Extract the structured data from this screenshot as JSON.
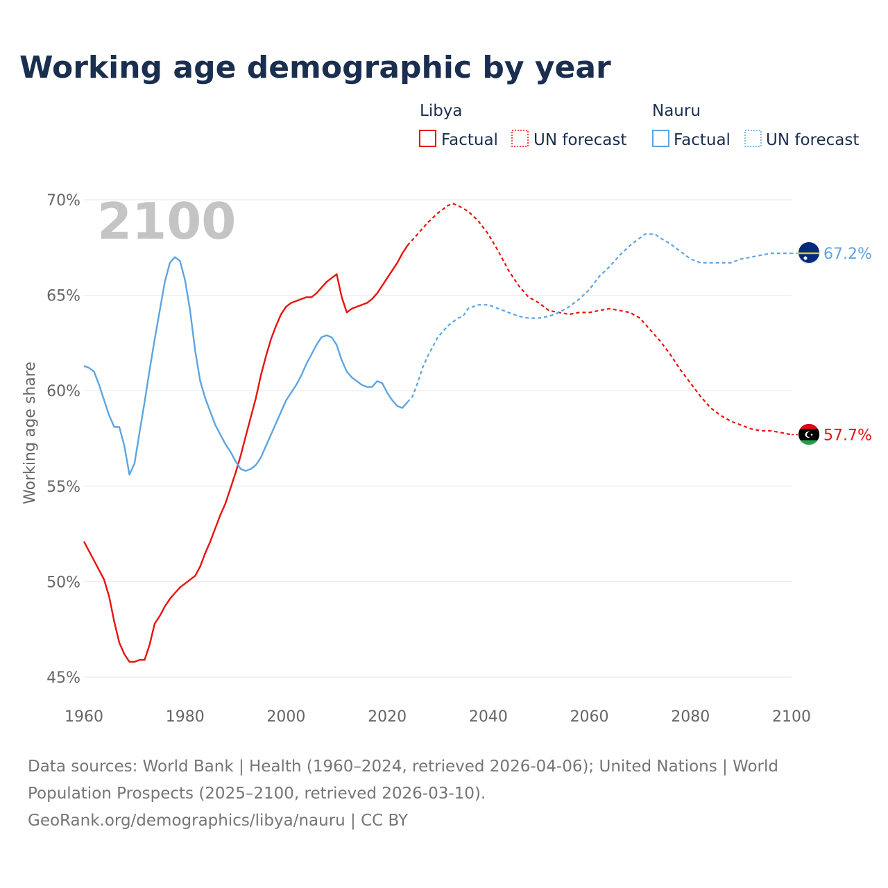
{
  "chart_data": {
    "type": "line",
    "title": "Working age demographic by year",
    "ylabel": "Working age share",
    "xlabel": "",
    "xlim": [
      1960,
      2100
    ],
    "ylim": [
      45,
      70
    ],
    "x_ticks": [
      1960,
      1980,
      2000,
      2020,
      2040,
      2060,
      2080,
      2100
    ],
    "x_tick_labels": [
      "1960",
      "1980",
      "2000",
      "2020",
      "2040",
      "2060",
      "2080",
      "2100"
    ],
    "y_ticks": [
      45,
      50,
      55,
      60,
      65,
      70
    ],
    "y_tick_labels": [
      "45%",
      "50%",
      "55%",
      "60%",
      "65%",
      "70%"
    ],
    "grid": true,
    "year_watermark": "2100",
    "legend": {
      "placement": "top-right",
      "groups": [
        {
          "country": "Libya",
          "factual_label": "Factual",
          "forecast_label": "UN forecast",
          "color": "#e8120c"
        },
        {
          "country": "Nauru",
          "factual_label": "Factual",
          "forecast_label": "UN forecast",
          "color": "#5da4e1"
        }
      ]
    },
    "series": [
      {
        "name": "Libya",
        "color": "#e8120c",
        "end_label": "57.7%",
        "flag": "libya",
        "factual": {
          "x": [
            1960,
            1962,
            1964,
            1965,
            1966,
            1967,
            1968,
            1969,
            1970,
            1971,
            1972,
            1973,
            1974,
            1975,
            1976,
            1977,
            1978,
            1979,
            1980,
            1981,
            1982,
            1983,
            1984,
            1985,
            1986,
            1987,
            1988,
            1989,
            1990,
            1991,
            1992,
            1993,
            1994,
            1995,
            1996,
            1997,
            1998,
            1999,
            2000,
            2001,
            2002,
            2003,
            2004,
            2005,
            2006,
            2007,
            2008,
            2009,
            2010,
            2011,
            2012,
            2013,
            2014,
            2015,
            2016,
            2017,
            2018,
            2019,
            2020,
            2021,
            2022,
            2023,
            2024
          ],
          "y": [
            52.1,
            51.1,
            50.1,
            49.2,
            47.9,
            46.8,
            46.2,
            45.8,
            45.8,
            45.9,
            45.9,
            46.7,
            47.8,
            48.2,
            48.7,
            49.1,
            49.4,
            49.7,
            49.9,
            50.1,
            50.3,
            50.8,
            51.5,
            52.1,
            52.8,
            53.5,
            54.1,
            54.9,
            55.7,
            56.6,
            57.6,
            58.6,
            59.6,
            60.8,
            61.8,
            62.7,
            63.4,
            64.0,
            64.4,
            64.6,
            64.7,
            64.8,
            64.9,
            64.9,
            65.1,
            65.4,
            65.7,
            65.9,
            66.1,
            64.9,
            64.1,
            64.3,
            64.4,
            64.5,
            64.6,
            64.8,
            65.1,
            65.5,
            65.9,
            66.3,
            66.7,
            67.2,
            67.6
          ]
        },
        "forecast": {
          "x": [
            2024,
            2026,
            2028,
            2030,
            2032,
            2033,
            2034,
            2036,
            2038,
            2040,
            2042,
            2044,
            2046,
            2048,
            2050,
            2052,
            2054,
            2056,
            2058,
            2060,
            2062,
            2064,
            2066,
            2068,
            2070,
            2072,
            2074,
            2076,
            2078,
            2080,
            2082,
            2084,
            2086,
            2088,
            2090,
            2092,
            2094,
            2096,
            2098,
            2100
          ],
          "y": [
            67.6,
            68.2,
            68.8,
            69.3,
            69.7,
            69.8,
            69.7,
            69.4,
            68.9,
            68.2,
            67.3,
            66.3,
            65.5,
            64.9,
            64.6,
            64.2,
            64.1,
            64.0,
            64.1,
            64.1,
            64.2,
            64.3,
            64.2,
            64.1,
            63.8,
            63.2,
            62.6,
            61.9,
            61.1,
            60.4,
            59.7,
            59.1,
            58.7,
            58.4,
            58.2,
            58.0,
            57.9,
            57.9,
            57.8,
            57.7
          ]
        }
      },
      {
        "name": "Nauru",
        "color": "#5da4e1",
        "end_label": "67.2%",
        "flag": "nauru",
        "factual": {
          "x": [
            1960,
            1961,
            1962,
            1963,
            1964,
            1965,
            1966,
            1967,
            1968,
            1969,
            1970,
            1971,
            1972,
            1973,
            1974,
            1975,
            1976,
            1977,
            1978,
            1979,
            1980,
            1981,
            1982,
            1983,
            1984,
            1985,
            1986,
            1987,
            1988,
            1989,
            1990,
            1991,
            1992,
            1993,
            1994,
            1995,
            1996,
            1997,
            1998,
            1999,
            2000,
            2001,
            2002,
            2003,
            2004,
            2005,
            2006,
            2007,
            2008,
            2009,
            2010,
            2011,
            2012,
            2013,
            2014,
            2015,
            2016,
            2017,
            2018,
            2019,
            2020,
            2021,
            2022,
            2023,
            2024
          ],
          "y": [
            61.3,
            61.2,
            61.0,
            60.3,
            59.5,
            58.7,
            58.1,
            58.1,
            57.1,
            55.6,
            56.2,
            57.8,
            59.4,
            61.1,
            62.7,
            64.2,
            65.7,
            66.7,
            67.0,
            66.8,
            65.8,
            64.2,
            62.1,
            60.5,
            59.6,
            58.9,
            58.2,
            57.7,
            57.2,
            56.8,
            56.3,
            55.9,
            55.8,
            55.9,
            56.1,
            56.5,
            57.1,
            57.7,
            58.3,
            58.9,
            59.5,
            59.9,
            60.3,
            60.8,
            61.4,
            61.9,
            62.4,
            62.8,
            62.9,
            62.8,
            62.4,
            61.6,
            61.0,
            60.7,
            60.5,
            60.3,
            60.2,
            60.2,
            60.5,
            60.4,
            59.9,
            59.5,
            59.2,
            59.1,
            59.4
          ]
        },
        "forecast": {
          "x": [
            2024,
            2025,
            2026,
            2027,
            2028,
            2029,
            2030,
            2031,
            2032,
            2034,
            2035,
            2036,
            2037,
            2038,
            2040,
            2042,
            2044,
            2046,
            2048,
            2050,
            2052,
            2054,
            2056,
            2058,
            2060,
            2062,
            2064,
            2066,
            2068,
            2070,
            2071,
            2072,
            2073,
            2074,
            2076,
            2078,
            2080,
            2082,
            2084,
            2086,
            2088,
            2090,
            2092,
            2094,
            2096,
            2098,
            2100
          ],
          "y": [
            59.4,
            59.7,
            60.4,
            61.2,
            61.8,
            62.3,
            62.8,
            63.1,
            63.4,
            63.8,
            63.9,
            64.3,
            64.4,
            64.5,
            64.5,
            64.3,
            64.1,
            63.9,
            63.8,
            63.8,
            63.9,
            64.1,
            64.4,
            64.8,
            65.3,
            66.0,
            66.5,
            67.1,
            67.6,
            68.0,
            68.2,
            68.2,
            68.2,
            68.0,
            67.7,
            67.3,
            66.9,
            66.7,
            66.7,
            66.7,
            66.7,
            66.9,
            67.0,
            67.1,
            67.2,
            67.2,
            67.2
          ]
        }
      }
    ]
  },
  "footer": {
    "line1": "Data sources: World Bank | Health (1960–2024, retrieved 2026-04-06); United Nations | World",
    "line2": "Population Prospects (2025–2100, retrieved 2026-03-10).",
    "line3": "GeoRank.org/demographics/libya/nauru | CC BY"
  }
}
